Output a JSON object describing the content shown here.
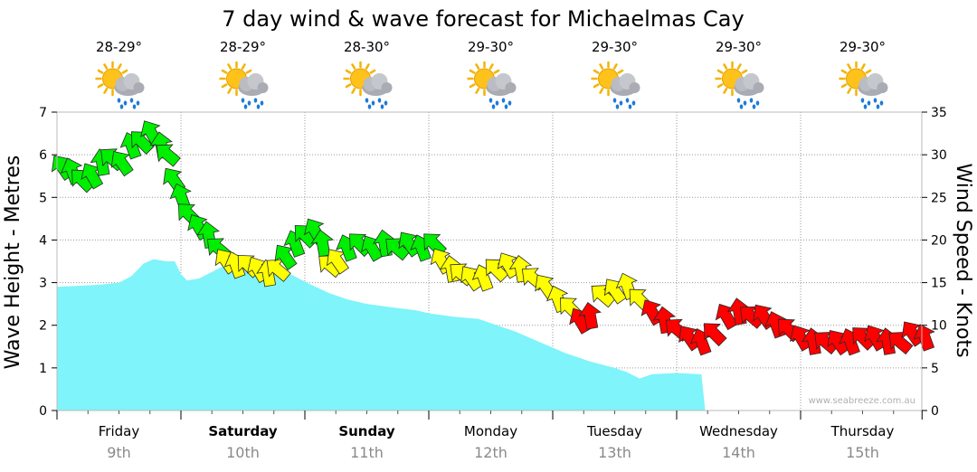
{
  "chart_data": {
    "type": "area",
    "title": "7 day wind & wave forecast for Michaelmas Cay",
    "ylabel_left": "Wave Height - Metres",
    "ylabel_right": "Wind Speed - Knots",
    "ylim_left": [
      0,
      7
    ],
    "ylim_right": [
      0,
      35
    ],
    "yticks_left": [
      "0",
      "1",
      "2",
      "3",
      "4",
      "5",
      "6",
      "7"
    ],
    "yticks_right": [
      "0",
      "5",
      "10",
      "15",
      "20",
      "25",
      "30",
      "35"
    ],
    "grid": true,
    "credit": "www.seabreeze.com.au",
    "days": [
      {
        "day": "Friday",
        "date": "9th",
        "temp": "28-29°",
        "bold": false,
        "icon": "sun-cloud-rain-icon"
      },
      {
        "day": "Saturday",
        "date": "10th",
        "temp": "28-29°",
        "bold": true,
        "icon": "sun-cloud-rain-icon"
      },
      {
        "day": "Sunday",
        "date": "11th",
        "temp": "28-30°",
        "bold": true,
        "icon": "sun-cloud-rain-icon"
      },
      {
        "day": "Monday",
        "date": "12th",
        "temp": "29-30°",
        "bold": false,
        "icon": "sun-cloud-rain-icon"
      },
      {
        "day": "Tuesday",
        "date": "13th",
        "temp": "29-30°",
        "bold": false,
        "icon": "sun-cloud-rain-icon"
      },
      {
        "day": "Wednesday",
        "date": "14th",
        "temp": "29-30°",
        "bold": false,
        "icon": "sun-cloud-rain-icon"
      },
      {
        "day": "Thursday",
        "date": "15th",
        "temp": "29-30°",
        "bold": false,
        "icon": "sun-cloud-rain-icon"
      }
    ],
    "wave_series": {
      "name": "Wave height",
      "color": "#7ff4fa",
      "points": [
        [
          0.0,
          2.9
        ],
        [
          0.15,
          2.92
        ],
        [
          0.35,
          2.95
        ],
        [
          0.5,
          3.0
        ],
        [
          0.6,
          3.15
        ],
        [
          0.7,
          3.45
        ],
        [
          0.78,
          3.55
        ],
        [
          0.88,
          3.5
        ],
        [
          0.95,
          3.5
        ],
        [
          1.0,
          3.2
        ],
        [
          1.05,
          3.05
        ],
        [
          1.15,
          3.1
        ],
        [
          1.25,
          3.25
        ],
        [
          1.35,
          3.4
        ],
        [
          1.5,
          3.5
        ],
        [
          1.6,
          3.4
        ],
        [
          1.75,
          3.35
        ],
        [
          1.85,
          3.25
        ],
        [
          1.95,
          3.1
        ],
        [
          2.05,
          2.95
        ],
        [
          2.2,
          2.75
        ],
        [
          2.35,
          2.6
        ],
        [
          2.5,
          2.5
        ],
        [
          2.7,
          2.42
        ],
        [
          2.9,
          2.35
        ],
        [
          3.0,
          2.28
        ],
        [
          3.2,
          2.2
        ],
        [
          3.4,
          2.15
        ],
        [
          3.5,
          2.05
        ],
        [
          3.7,
          1.85
        ],
        [
          3.9,
          1.6
        ],
        [
          4.1,
          1.35
        ],
        [
          4.3,
          1.15
        ],
        [
          4.5,
          1.0
        ],
        [
          4.6,
          0.9
        ],
        [
          4.7,
          0.75
        ],
        [
          4.8,
          0.85
        ],
        [
          5.0,
          0.88
        ],
        [
          5.2,
          0.85
        ],
        [
          5.23,
          0.0
        ]
      ]
    },
    "wind_series": {
      "name": "Wind speed",
      "thresholds": [
        {
          "min": 0,
          "max": 12,
          "color": "#ff0000"
        },
        {
          "min": 12,
          "max": 18,
          "color": "#ffff00"
        },
        {
          "min": 18,
          "max": 99,
          "color": "#00ee00"
        }
      ],
      "points": [
        [
          0.0,
          28.5
        ],
        [
          0.08,
          28.0
        ],
        [
          0.16,
          27.0
        ],
        [
          0.24,
          27.5
        ],
        [
          0.32,
          29.0
        ],
        [
          0.4,
          29.5
        ],
        [
          0.48,
          29.0
        ],
        [
          0.56,
          31.0
        ],
        [
          0.64,
          31.5
        ],
        [
          0.72,
          32.5
        ],
        [
          0.8,
          31.0
        ],
        [
          0.85,
          30.0
        ],
        [
          0.9,
          27.0
        ],
        [
          0.96,
          25.0
        ],
        [
          1.02,
          23.0
        ],
        [
          1.1,
          21.5
        ],
        [
          1.18,
          20.5
        ],
        [
          1.26,
          19.0
        ],
        [
          1.32,
          17.5
        ],
        [
          1.4,
          17.0
        ],
        [
          1.5,
          17.0
        ],
        [
          1.58,
          16.5
        ],
        [
          1.66,
          16.0
        ],
        [
          1.74,
          16.5
        ],
        [
          1.8,
          18.0
        ],
        [
          1.88,
          19.5
        ],
        [
          1.96,
          20.5
        ],
        [
          2.04,
          21.0
        ],
        [
          2.1,
          19.5
        ],
        [
          2.16,
          17.0
        ],
        [
          2.22,
          17.5
        ],
        [
          2.3,
          19.0
        ],
        [
          2.4,
          19.5
        ],
        [
          2.5,
          19.0
        ],
        [
          2.6,
          19.5
        ],
        [
          2.7,
          19.0
        ],
        [
          2.8,
          19.5
        ],
        [
          2.9,
          19.0
        ],
        [
          3.0,
          19.5
        ],
        [
          3.06,
          17.5
        ],
        [
          3.14,
          16.5
        ],
        [
          3.22,
          16.0
        ],
        [
          3.3,
          15.5
        ],
        [
          3.4,
          15.5
        ],
        [
          3.5,
          16.5
        ],
        [
          3.6,
          17.0
        ],
        [
          3.7,
          16.5
        ],
        [
          3.8,
          15.5
        ],
        [
          3.9,
          14.5
        ],
        [
          4.0,
          13.0
        ],
        [
          4.1,
          12.0
        ],
        [
          4.18,
          10.5
        ],
        [
          4.26,
          11.0
        ],
        [
          4.36,
          13.5
        ],
        [
          4.46,
          14.0
        ],
        [
          4.56,
          14.5
        ],
        [
          4.66,
          13.0
        ],
        [
          4.76,
          11.5
        ],
        [
          4.86,
          10.5
        ],
        [
          4.96,
          9.5
        ],
        [
          5.06,
          8.5
        ],
        [
          5.16,
          8.0
        ],
        [
          5.26,
          9.0
        ],
        [
          5.36,
          11.0
        ],
        [
          5.46,
          11.5
        ],
        [
          5.56,
          11.0
        ],
        [
          5.66,
          11.0
        ],
        [
          5.76,
          10.0
        ],
        [
          5.86,
          9.5
        ],
        [
          5.96,
          8.5
        ],
        [
          6.06,
          8.0
        ],
        [
          6.16,
          8.0
        ],
        [
          6.26,
          8.0
        ],
        [
          6.36,
          8.0
        ],
        [
          6.46,
          8.5
        ],
        [
          6.56,
          8.5
        ],
        [
          6.66,
          8.0
        ],
        [
          6.76,
          8.0
        ],
        [
          6.86,
          9.0
        ],
        [
          6.96,
          8.5
        ]
      ]
    }
  }
}
